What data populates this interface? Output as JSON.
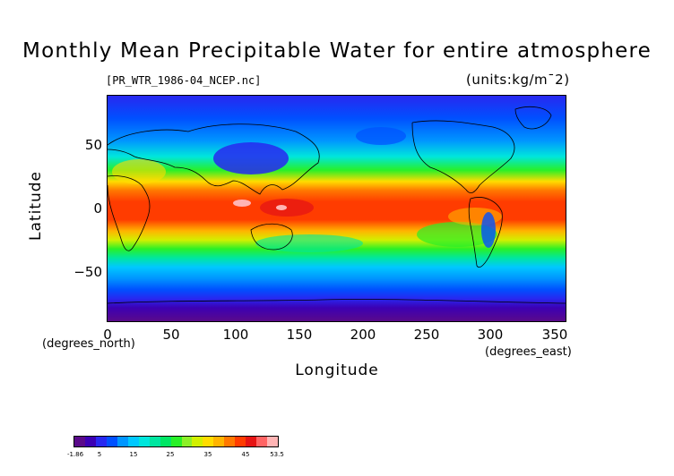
{
  "title": "Monthly Mean Precipitable Water for entire atmosphere",
  "filename": "[PR_WTR_1986-04_NCEP.nc]",
  "units": "(units:kg/m¯2)",
  "y_axis": {
    "label": "Latitude",
    "units": "(degrees_north)",
    "ticks": [
      "50",
      "0",
      "−50"
    ]
  },
  "x_axis": {
    "label": "Longitude",
    "units": "(degrees_east)",
    "ticks": [
      "0",
      "50",
      "100",
      "150",
      "200",
      "250",
      "300",
      "350"
    ]
  },
  "colorbar": {
    "labels": [
      "-1.86",
      "5",
      "15",
      "25",
      "35",
      "45",
      "53.5"
    ],
    "colors": [
      "#5a0a8a",
      "#3c00b4",
      "#2828f0",
      "#0050ff",
      "#0096ff",
      "#00c8ff",
      "#00e6dc",
      "#00e6a0",
      "#00e664",
      "#28f028",
      "#8cf028",
      "#d2f000",
      "#ffdc00",
      "#ffb400",
      "#ff7800",
      "#ff3c00",
      "#e61414",
      "#ff6464",
      "#ffb4b4"
    ]
  },
  "map": {
    "projection": "cylindrical equidistant",
    "lon_range": [
      0,
      360
    ],
    "lat_range": [
      -90,
      90
    ],
    "description_colors": {
      "polar_south": "#5a0a8a",
      "high_lat": "#2828f0",
      "mid_lat": "#00c8ff",
      "subtropics": "#28f028",
      "tropics": "#ff3c00",
      "warm_pool": "#ffb4b4"
    }
  }
}
